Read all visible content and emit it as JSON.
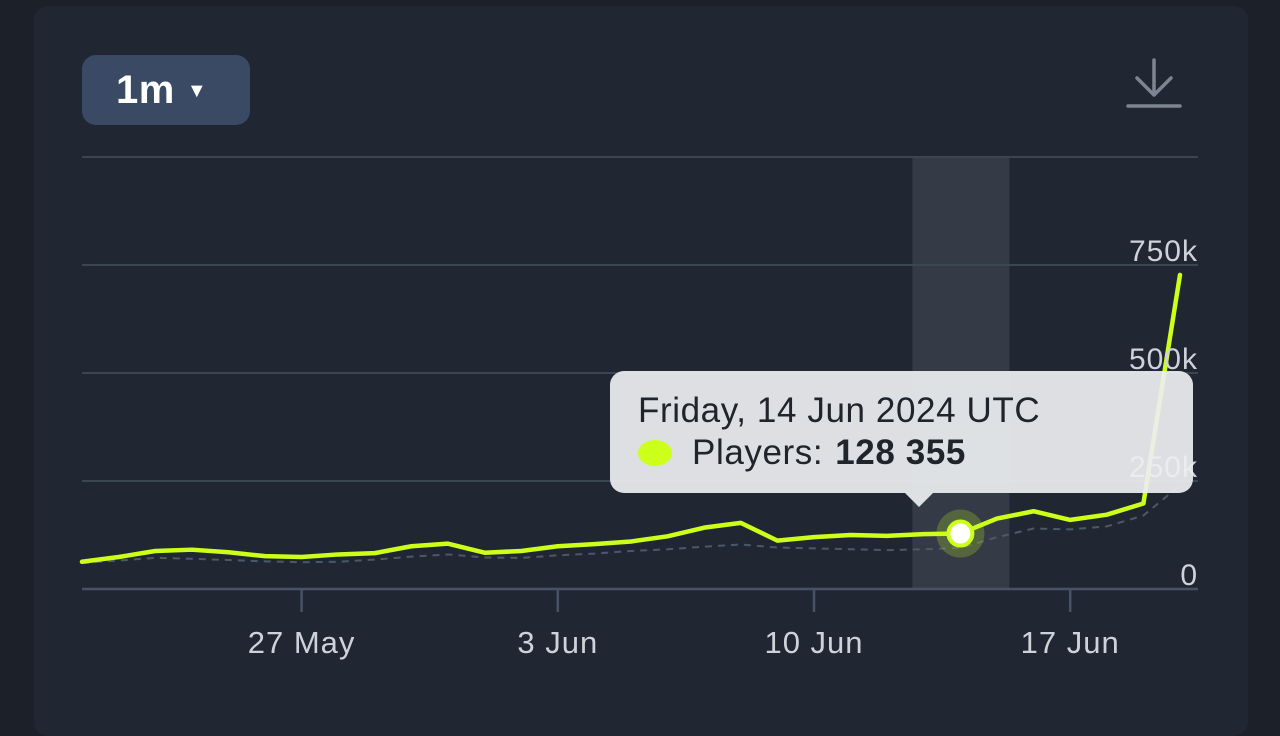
{
  "controls": {
    "range_label": "1m",
    "caret_icon": "caret-down-icon",
    "download_icon": "download-icon"
  },
  "tooltip": {
    "date": "Friday, 14 Jun 2024 UTC",
    "series_label": "Players:",
    "value_text": "128 355"
  },
  "colors": {
    "background": "#1b2029",
    "card": "#202733",
    "button": "#3a4a64",
    "series": "#ccff1a",
    "grid": "#3c4552",
    "axis_text": "#cfd3d9",
    "hover_band": "#343b46"
  },
  "chart_data": {
    "type": "line",
    "title": "",
    "xlabel": "",
    "ylabel": "",
    "x_tick_labels": [
      "27 May",
      "3 Jun",
      "10 Jun",
      "17 Jun"
    ],
    "x_tick_dates": [
      "2024-05-27",
      "2024-06-03",
      "2024-06-10",
      "2024-06-17"
    ],
    "y_ticks": [
      0,
      250000,
      500000,
      750000
    ],
    "y_tick_labels": [
      "0",
      "250k",
      "500k",
      "750k"
    ],
    "ylim": [
      0,
      1000000
    ],
    "xlim": [
      "2024-05-21",
      "2024-06-20"
    ],
    "grid": true,
    "highlight": {
      "date": "2024-06-14",
      "value": 128355
    },
    "series": [
      {
        "name": "Players",
        "x": [
          "2024-05-21",
          "2024-05-22",
          "2024-05-23",
          "2024-05-24",
          "2024-05-25",
          "2024-05-26",
          "2024-05-27",
          "2024-05-28",
          "2024-05-29",
          "2024-05-30",
          "2024-05-31",
          "2024-06-01",
          "2024-06-02",
          "2024-06-03",
          "2024-06-04",
          "2024-06-05",
          "2024-06-06",
          "2024-06-07",
          "2024-06-08",
          "2024-06-09",
          "2024-06-10",
          "2024-06-11",
          "2024-06-12",
          "2024-06-13",
          "2024-06-14",
          "2024-06-15",
          "2024-06-16",
          "2024-06-17",
          "2024-06-18",
          "2024-06-19",
          "2024-06-20"
        ],
        "values": [
          63000,
          74000,
          88000,
          91000,
          85000,
          76000,
          74000,
          80000,
          83000,
          99000,
          105000,
          84000,
          88000,
          99000,
          104000,
          110000,
          122000,
          142000,
          153000,
          112000,
          120000,
          125000,
          123000,
          127000,
          128355,
          163000,
          180000,
          160000,
          172000,
          198000,
          727000
        ]
      },
      {
        "name": "",
        "style": "dashed",
        "x": [
          "2024-05-21",
          "2024-05-22",
          "2024-05-23",
          "2024-05-24",
          "2024-05-25",
          "2024-05-26",
          "2024-05-27",
          "2024-05-28",
          "2024-05-29",
          "2024-05-30",
          "2024-05-31",
          "2024-06-01",
          "2024-06-02",
          "2024-06-03",
          "2024-06-04",
          "2024-06-05",
          "2024-06-06",
          "2024-06-07",
          "2024-06-08",
          "2024-06-09",
          "2024-06-10",
          "2024-06-11",
          "2024-06-12",
          "2024-06-13",
          "2024-06-14",
          "2024-06-15",
          "2024-06-16",
          "2024-06-17",
          "2024-06-18",
          "2024-06-19",
          "2024-06-20"
        ],
        "values": [
          60000,
          66000,
          72000,
          70000,
          67000,
          64000,
          62000,
          63000,
          68000,
          75000,
          80000,
          73000,
          72000,
          78000,
          82000,
          88000,
          92000,
          98000,
          103000,
          96000,
          94000,
          92000,
          90000,
          92000,
          95000,
          120000,
          140000,
          138000,
          145000,
          170000,
          240000
        ]
      }
    ]
  }
}
